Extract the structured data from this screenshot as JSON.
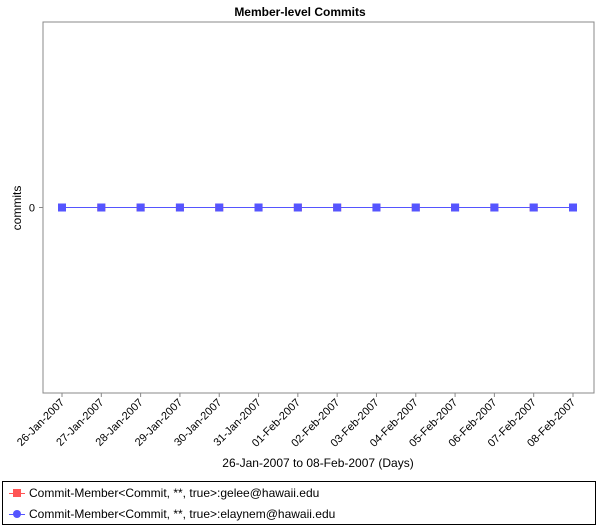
{
  "chart_data": {
    "type": "line",
    "title": "Member-level Commits",
    "xlabel": "26-Jan-2007 to 08-Feb-2007 (Days)",
    "ylabel": "commits",
    "categories": [
      "26-Jan-2007",
      "27-Jan-2007",
      "28-Jan-2007",
      "29-Jan-2007",
      "30-Jan-2007",
      "31-Jan-2007",
      "01-Feb-2007",
      "02-Feb-2007",
      "03-Feb-2007",
      "04-Feb-2007",
      "05-Feb-2007",
      "06-Feb-2007",
      "07-Feb-2007",
      "08-Feb-2007"
    ],
    "y_ticks": [
      "0"
    ],
    "ylim": [
      -1,
      1
    ],
    "grid": false,
    "legend_position": "bottom",
    "series": [
      {
        "name": "Commit-Member<Commit, **, true>:gelee@hawaii.edu",
        "color": "#ff5555",
        "marker": "square",
        "values": [
          0,
          0,
          0,
          0,
          0,
          0,
          0,
          0,
          0,
          0,
          0,
          0,
          0,
          0
        ]
      },
      {
        "name": "Commit-Member<Commit, **, true>:elaynem@hawaii.edu",
        "color": "#5555ff",
        "marker": "circle",
        "values": [
          0,
          0,
          0,
          0,
          0,
          0,
          0,
          0,
          0,
          0,
          0,
          0,
          0,
          0
        ]
      }
    ]
  }
}
